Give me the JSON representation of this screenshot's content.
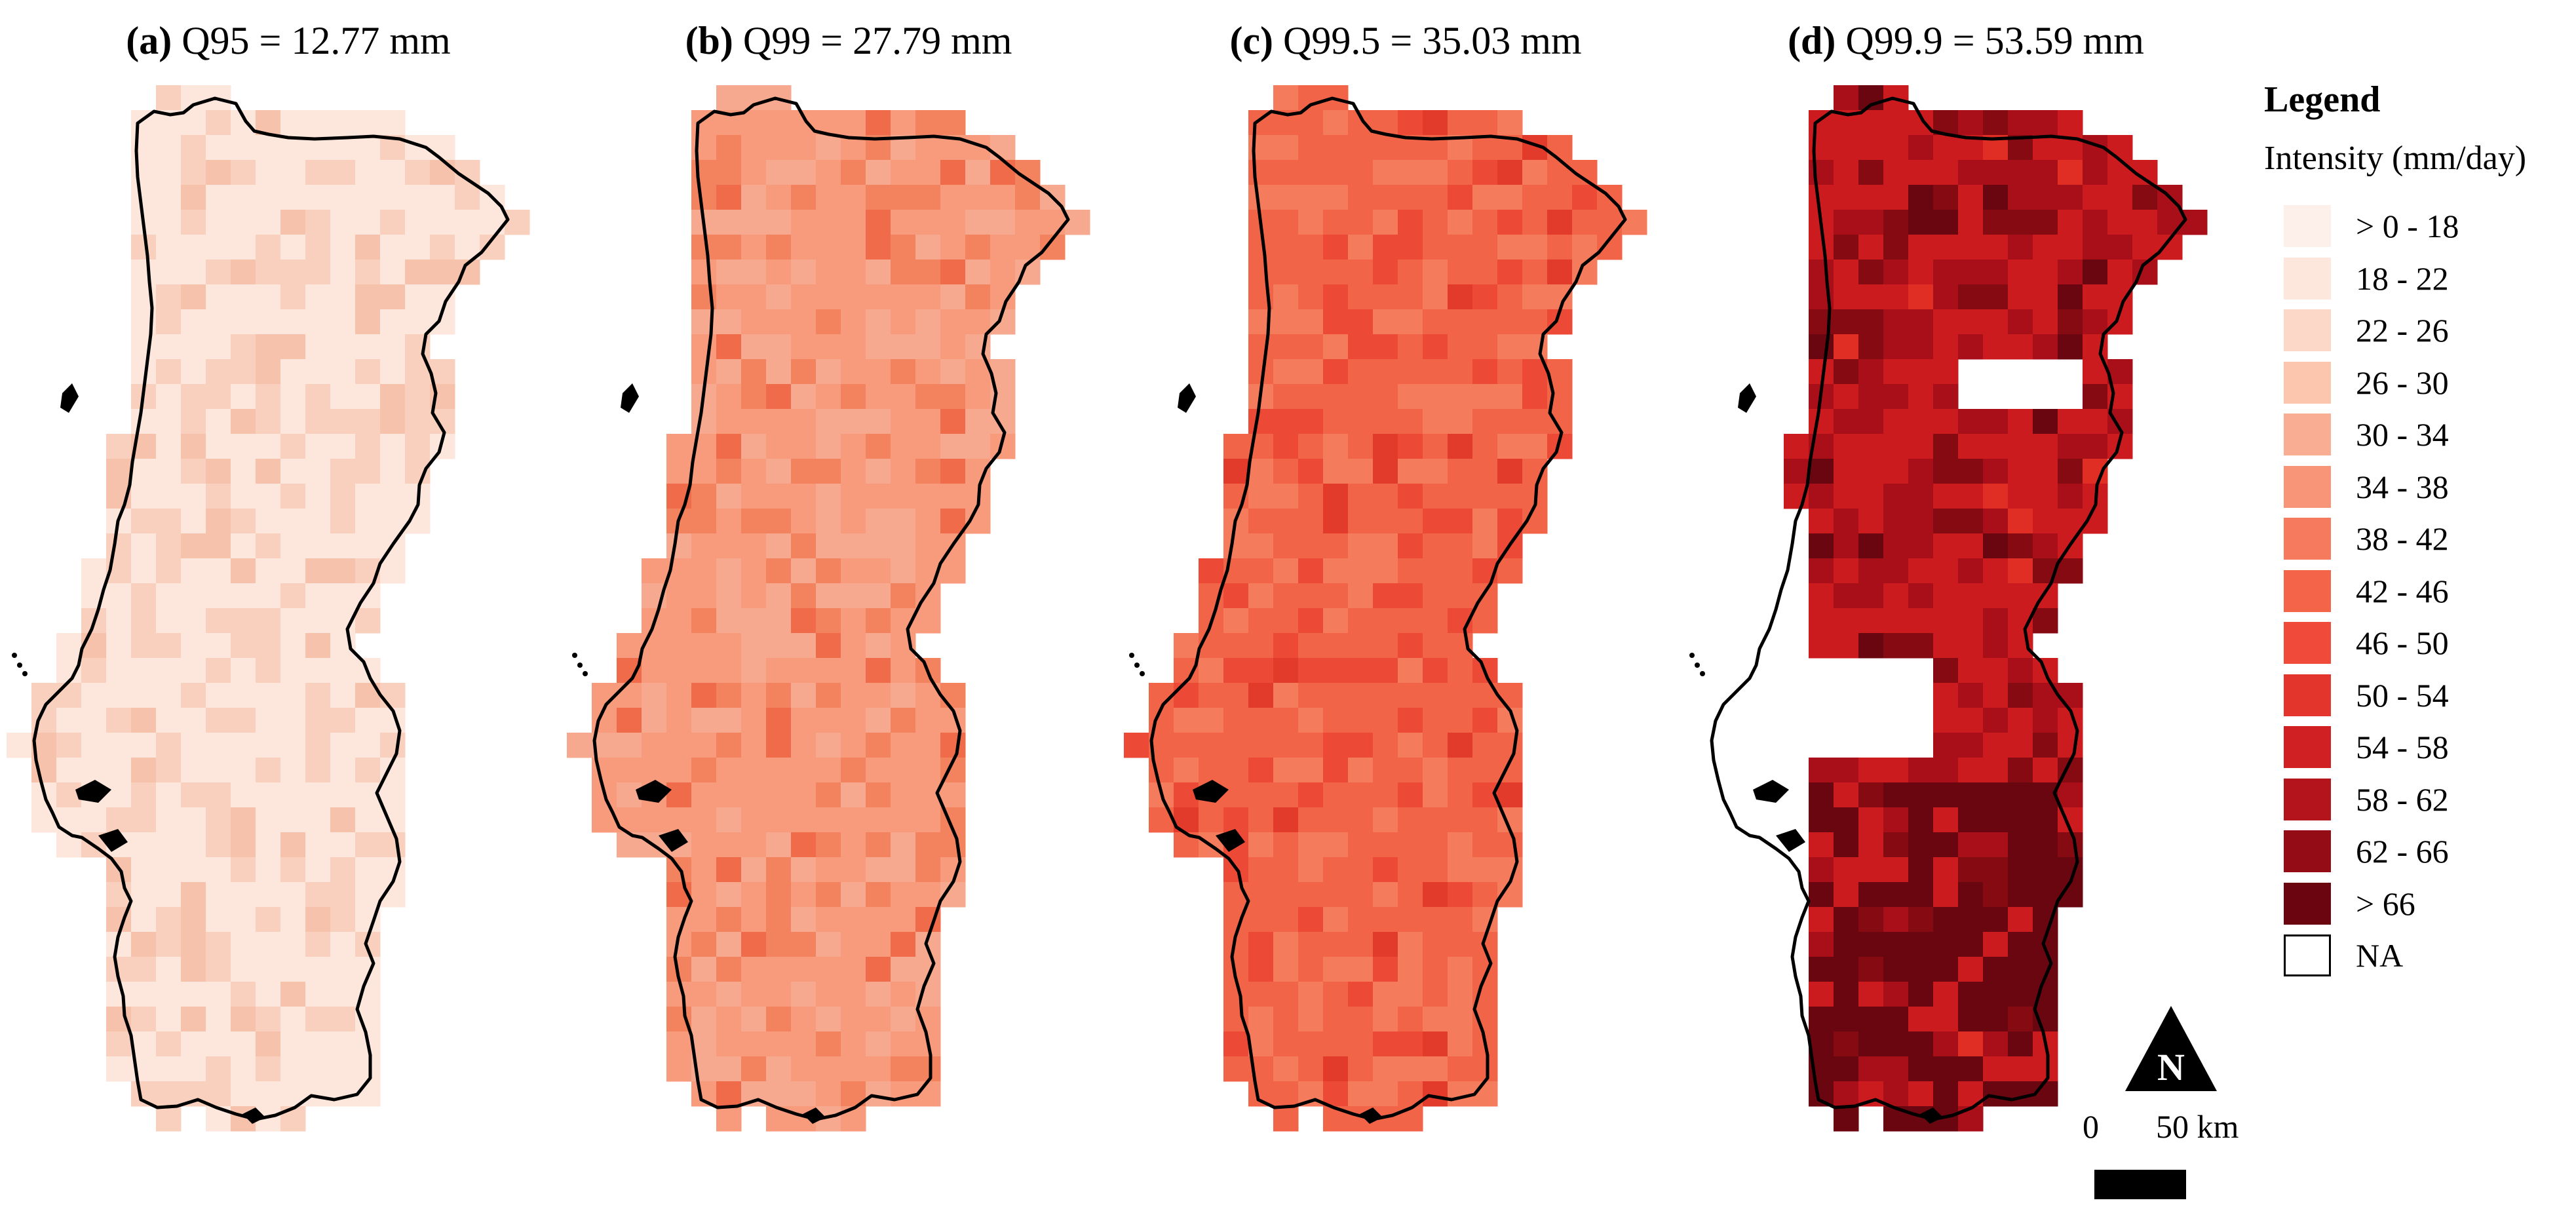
{
  "panels": [
    {
      "id": "a",
      "label": "(a)",
      "title": "Q95 = 12.77 mm",
      "base_color": "#fde6dc",
      "patch_colors": [
        "#f9d0bd",
        "#f7c2ab"
      ],
      "na_regions": []
    },
    {
      "id": "b",
      "label": "(b)",
      "title": "Q99 = 27.79 mm",
      "base_color": "#f89a7c",
      "patch_colors": [
        "#f6a98e",
        "#f3825f",
        "#f06b49"
      ],
      "na_regions": []
    },
    {
      "id": "c",
      "label": "(c)",
      "title": "Q99.5 = 35.03 mm",
      "base_color": "#f26448",
      "patch_colors": [
        "#f57b5d",
        "#ec4a36",
        "#e23b2c"
      ],
      "na_regions": []
    },
    {
      "id": "d",
      "label": "(d)",
      "title": "Q99.9 = 53.59 mm",
      "base_color": "#cc1b1e",
      "patch_colors": [
        "#a80f18",
        "#850a12",
        "#e02e24",
        "#6a0610"
      ],
      "na_regions": [
        "lisbon-west",
        "central-east-gap"
      ]
    }
  ],
  "legend": {
    "title": "Legend",
    "subtitle": "Intensity (mm/day)",
    "items": [
      {
        "label": "> 0 - 18",
        "color": "#fdf0ea"
      },
      {
        "label": "18 - 22",
        "color": "#fde6dc"
      },
      {
        "label": "22 - 26",
        "color": "#fcd8c8"
      },
      {
        "label": "26 - 30",
        "color": "#fbc5ae"
      },
      {
        "label": "30 - 34",
        "color": "#f9ae94"
      },
      {
        "label": "34 - 38",
        "color": "#f89478"
      },
      {
        "label": "38 - 42",
        "color": "#f67b5e"
      },
      {
        "label": "42 - 46",
        "color": "#f46449"
      },
      {
        "label": "46 - 50",
        "color": "#f04b3a"
      },
      {
        "label": "50 - 54",
        "color": "#e4352d"
      },
      {
        "label": "54 - 58",
        "color": "#d02023"
      },
      {
        "label": "58 - 62",
        "color": "#b4141c"
      },
      {
        "label": "62 - 66",
        "color": "#940c15"
      },
      {
        "label": "> 66",
        "color": "#6b0610"
      },
      {
        "label": "NA",
        "color": "#ffffff"
      }
    ]
  },
  "north_arrow": {
    "label": "N"
  },
  "scale_bar": {
    "zero_label": "0",
    "distance_label": "50 km"
  }
}
